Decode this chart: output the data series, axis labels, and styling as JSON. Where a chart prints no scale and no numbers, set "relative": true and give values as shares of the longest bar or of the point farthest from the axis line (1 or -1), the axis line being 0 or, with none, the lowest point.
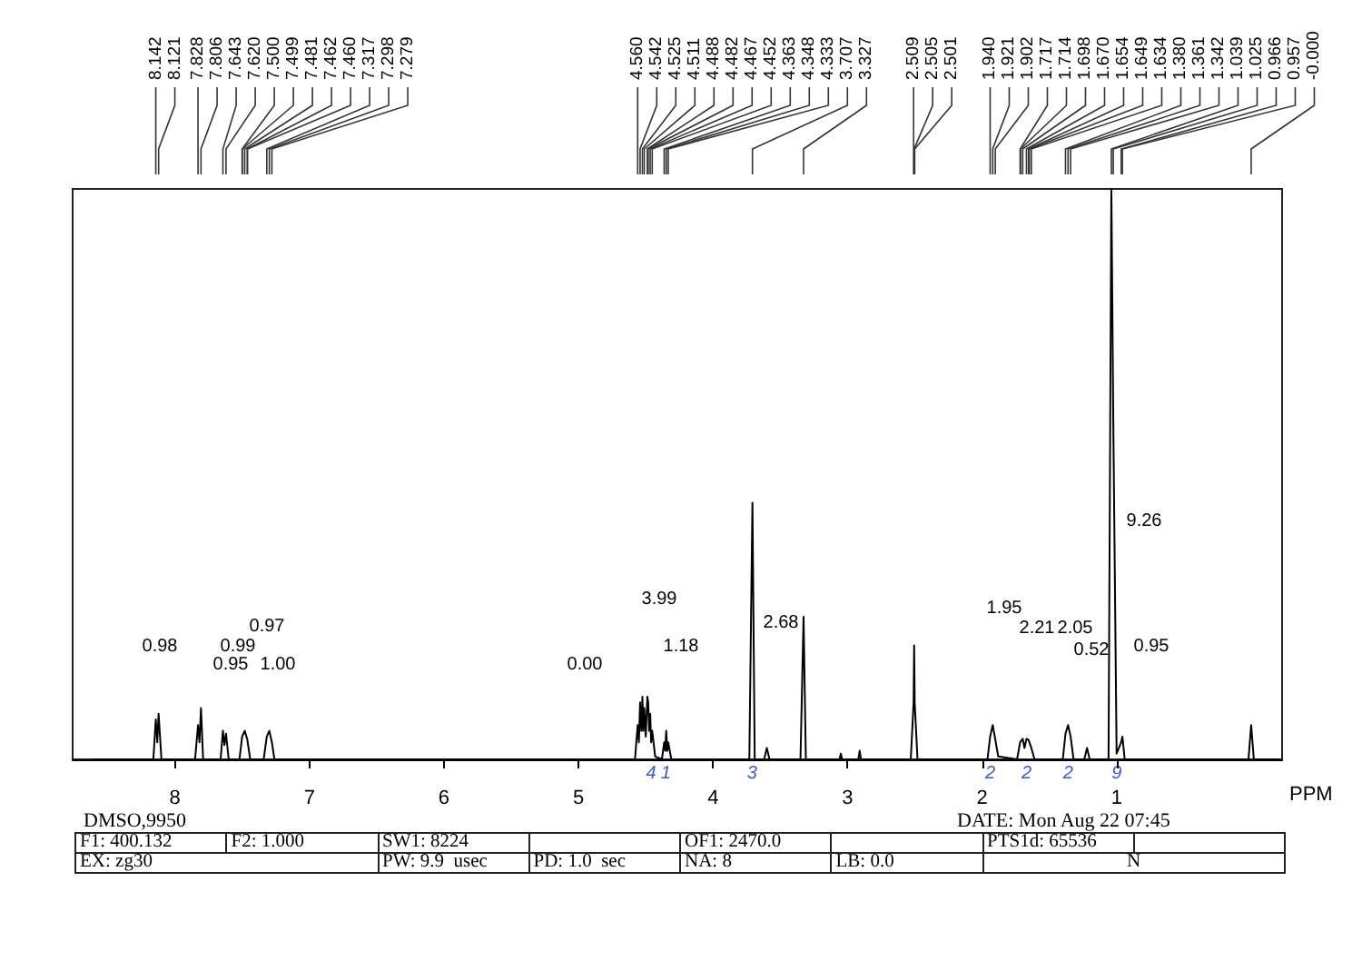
{
  "chart_data": {
    "type": "line",
    "relative": true,
    "xlabel": "PPM",
    "xlim": [
      8.76,
      -0.23
    ],
    "xticks": [
      8,
      7,
      6,
      5,
      4,
      3,
      2,
      1
    ],
    "grid": false,
    "marker": "none",
    "line_style": "solid",
    "series": [
      {
        "color": "#000000",
        "x": [
          8.6,
          8.16,
          8.142,
          8.131,
          8.121,
          8.1,
          7.85,
          7.828,
          7.817,
          7.806,
          7.79,
          7.66,
          7.643,
          7.632,
          7.62,
          7.6,
          7.52,
          7.5,
          7.481,
          7.462,
          7.44,
          7.34,
          7.317,
          7.298,
          7.279,
          7.26,
          4.58,
          4.56,
          4.551,
          4.542,
          4.533,
          4.525,
          4.518,
          4.511,
          4.5,
          4.488,
          4.482,
          4.475,
          4.467,
          4.46,
          4.452,
          4.43,
          4.38,
          4.363,
          4.355,
          4.348,
          4.34,
          4.333,
          4.31,
          3.73,
          3.707,
          3.69,
          3.62,
          3.6,
          3.58,
          3.35,
          3.327,
          3.31,
          3.06,
          3.05,
          3.04,
          2.92,
          2.91,
          2.9,
          2.53,
          2.509,
          2.505,
          2.501,
          2.48,
          1.96,
          1.94,
          1.921,
          1.902,
          1.88,
          1.74,
          1.717,
          1.714,
          1.698,
          1.685,
          1.67,
          1.654,
          1.649,
          1.634,
          1.61,
          1.4,
          1.38,
          1.361,
          1.342,
          1.32,
          1.24,
          1.22,
          1.2,
          1.06,
          1.039,
          1.025,
          1.0,
          0.966,
          0.957,
          0.94,
          0.02,
          0.0,
          -0.02,
          -0.2
        ],
        "values": [
          0,
          0,
          0.07,
          0.03,
          0.08,
          0,
          0,
          0.06,
          0.03,
          0.09,
          0,
          0,
          0.05,
          0.025,
          0.045,
          0,
          0,
          0.04,
          0.05,
          0.035,
          0,
          0,
          0.04,
          0.05,
          0.03,
          0,
          0,
          0.06,
          0.03,
          0.1,
          0.05,
          0.11,
          0.05,
          0.09,
          0.04,
          0.11,
          0.1,
          0.05,
          0.08,
          0.03,
          0.05,
          0.005,
          0,
          0.03,
          0.015,
          0.05,
          0.015,
          0.03,
          0,
          0,
          0.45,
          0,
          0,
          0.02,
          0,
          0,
          0.25,
          0,
          0,
          0.01,
          0,
          0,
          0.015,
          0,
          0,
          0.1,
          0.2,
          0.1,
          0,
          0,
          0.04,
          0.06,
          0.035,
          0.005,
          0,
          0.03,
          0.032,
          0.036,
          0.02,
          0.036,
          0.034,
          0.03,
          0.02,
          0,
          0,
          0.045,
          0.06,
          0.04,
          0,
          0,
          0.02,
          0,
          0,
          1,
          0.6,
          0.01,
          0.03,
          0.04,
          0,
          0,
          0.06,
          0,
          0
        ]
      }
    ],
    "annotations": [
      {
        "text": "8.142",
        "x": 8.142
      },
      {
        "text": "8.121",
        "x": 8.121
      },
      {
        "text": "7.828",
        "x": 7.828
      },
      {
        "text": "7.806",
        "x": 7.806
      },
      {
        "text": "7.643",
        "x": 7.643
      },
      {
        "text": "7.620",
        "x": 7.62
      },
      {
        "text": "7.500",
        "x": 7.5
      },
      {
        "text": "7.499",
        "x": 7.499
      },
      {
        "text": "7.481",
        "x": 7.481
      },
      {
        "text": "7.462",
        "x": 7.462
      },
      {
        "text": "7.460",
        "x": 7.46
      },
      {
        "text": "7.317",
        "x": 7.317
      },
      {
        "text": "7.298",
        "x": 7.298
      },
      {
        "text": "7.279",
        "x": 7.279
      },
      {
        "text": "4.560",
        "x": 4.56
      },
      {
        "text": "4.542",
        "x": 4.542
      },
      {
        "text": "4.525",
        "x": 4.525
      },
      {
        "text": "4.511",
        "x": 4.511
      },
      {
        "text": "4.488",
        "x": 4.488
      },
      {
        "text": "4.482",
        "x": 4.482
      },
      {
        "text": "4.467",
        "x": 4.467
      },
      {
        "text": "4.452",
        "x": 4.452
      },
      {
        "text": "4.363",
        "x": 4.363
      },
      {
        "text": "4.348",
        "x": 4.348
      },
      {
        "text": "4.333",
        "x": 4.333
      },
      {
        "text": "3.707",
        "x": 3.707
      },
      {
        "text": "3.327",
        "x": 3.327
      },
      {
        "text": "2.509",
        "x": 2.509
      },
      {
        "text": "2.505",
        "x": 2.505
      },
      {
        "text": "2.501",
        "x": 2.501
      },
      {
        "text": "1.940",
        "x": 1.94
      },
      {
        "text": "1.921",
        "x": 1.921
      },
      {
        "text": "1.902",
        "x": 1.902
      },
      {
        "text": "1.717",
        "x": 1.717
      },
      {
        "text": "1.714",
        "x": 1.714
      },
      {
        "text": "1.698",
        "x": 1.698
      },
      {
        "text": "1.670",
        "x": 1.67
      },
      {
        "text": "1.654",
        "x": 1.654
      },
      {
        "text": "1.649",
        "x": 1.649
      },
      {
        "text": "1.634",
        "x": 1.634
      },
      {
        "text": "1.380",
        "x": 1.38
      },
      {
        "text": "1.361",
        "x": 1.361
      },
      {
        "text": "1.342",
        "x": 1.342
      },
      {
        "text": "1.039",
        "x": 1.039
      },
      {
        "text": "1.025",
        "x": 1.025
      },
      {
        "text": "0.966",
        "x": 0.966
      },
      {
        "text": "0.957",
        "x": 0.957
      },
      {
        "text": "-0.000",
        "x": 0.0
      },
      "0.98",
      "0.95",
      "0.99",
      "0.97",
      "1.00",
      "0.00",
      "3.99",
      "1.18",
      "2.68",
      "1.95",
      "2.21",
      "2.05",
      "0.52",
      "0.95",
      "9.26",
      {
        "text": "4",
        "x": 4.46,
        "y": 0
      },
      {
        "text": "1",
        "x": 4.35,
        "y": 0
      },
      {
        "text": "3",
        "x": 3.71,
        "y": 0
      },
      {
        "text": "2",
        "x": 1.94,
        "y": 0
      },
      {
        "text": "2",
        "x": 1.67,
        "y": 0
      },
      {
        "text": "2",
        "x": 1.36,
        "y": 0
      },
      {
        "text": "9",
        "x": 1.0,
        "y": 0
      },
      "DMSO,9950",
      "DATE: Mon Aug 22 07:45",
      "F1: 400.132",
      "F2: 1.000",
      "SW1: 8224",
      "OF1: 2470.0",
      "PTS1d: 65536",
      "EX: zg30",
      "PW: 9.9  usec",
      "PD: 1.0  sec",
      "NA: 8",
      "LB: 0.0",
      "N"
    ]
  }
}
